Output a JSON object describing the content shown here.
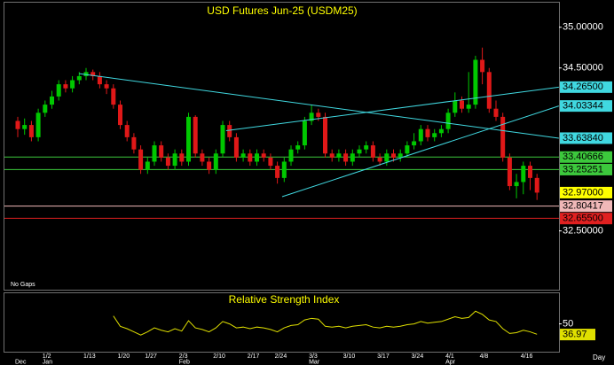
{
  "chart_data": {
    "type": "candlestick",
    "title": "USD  Futures  Jun-25  (USDM25)",
    "footnote": "No Gaps",
    "x_unit_label": "Day",
    "categories": [
      null,
      null,
      null,
      null,
      "1/2",
      null,
      null,
      null,
      null,
      null,
      "1/13",
      null,
      null,
      null,
      null,
      "1/20",
      null,
      null,
      null,
      "1/27",
      null,
      null,
      null,
      null,
      "2/3",
      null,
      null,
      null,
      null,
      "2/10",
      null,
      null,
      null,
      null,
      "2/17",
      null,
      null,
      null,
      "2/24",
      null,
      null,
      null,
      null,
      "3/3",
      null,
      null,
      null,
      null,
      "3/10",
      null,
      null,
      null,
      null,
      "3/17",
      null,
      null,
      null,
      null,
      "3/24",
      null,
      null,
      null,
      null,
      "4/1",
      null,
      null,
      null,
      null,
      "4/8",
      null,
      null,
      null,
      null,
      null,
      "4/16",
      null,
      null
    ],
    "months": [
      "Dec",
      null,
      null,
      null,
      "Jan",
      null,
      null,
      null,
      null,
      null,
      null,
      null,
      null,
      null,
      null,
      null,
      null,
      null,
      null,
      null,
      null,
      null,
      null,
      null,
      "Feb",
      null,
      null,
      null,
      null,
      null,
      null,
      null,
      null,
      null,
      null,
      null,
      null,
      null,
      null,
      null,
      null,
      null,
      null,
      "Mar",
      null,
      null,
      null,
      null,
      null,
      null,
      null,
      null,
      null,
      null,
      null,
      null,
      null,
      null,
      null,
      null,
      null,
      null,
      null,
      "Apr",
      null,
      null,
      null,
      null,
      null,
      null,
      null,
      null,
      null,
      null,
      null,
      null,
      null
    ],
    "open": [
      33.85,
      33.75,
      33.8,
      33.65,
      33.95,
      34.05,
      34.15,
      34.3,
      34.25,
      34.35,
      34.4,
      34.45,
      34.4,
      34.3,
      34.25,
      34.05,
      33.8,
      33.65,
      33.5,
      33.25,
      33.35,
      33.55,
      33.4,
      33.3,
      33.45,
      33.35,
      33.9,
      33.45,
      33.35,
      33.25,
      33.45,
      33.8,
      33.65,
      33.4,
      33.45,
      33.35,
      33.45,
      33.4,
      33.3,
      33.15,
      33.35,
      33.5,
      33.55,
      33.85,
      33.95,
      33.9,
      33.45,
      33.4,
      33.45,
      33.35,
      33.45,
      33.5,
      33.55,
      33.4,
      33.35,
      33.45,
      33.4,
      33.45,
      33.55,
      33.6,
      33.75,
      33.65,
      33.7,
      33.75,
      33.95,
      34.1,
      34.0,
      34.05,
      34.6,
      34.45,
      34.0,
      33.9,
      33.4,
      33.05,
      33.1,
      33.3,
      33.15
    ],
    "high": [
      33.9,
      33.88,
      33.85,
      34.0,
      34.1,
      34.22,
      34.35,
      34.35,
      34.4,
      34.45,
      34.5,
      34.48,
      34.45,
      34.35,
      34.3,
      34.1,
      33.85,
      33.7,
      33.55,
      33.4,
      33.6,
      33.6,
      33.45,
      33.5,
      33.5,
      33.95,
      33.92,
      33.5,
      33.4,
      33.5,
      33.85,
      33.85,
      33.7,
      33.5,
      33.5,
      33.5,
      33.5,
      33.45,
      33.35,
      33.4,
      33.55,
      33.6,
      33.9,
      34.05,
      34.0,
      33.95,
      33.5,
      33.5,
      33.5,
      33.5,
      33.55,
      33.6,
      33.6,
      33.45,
      33.5,
      33.5,
      33.5,
      33.6,
      33.7,
      33.8,
      33.8,
      33.75,
      33.8,
      34.0,
      34.2,
      34.15,
      34.45,
      34.65,
      34.75,
      34.5,
      34.1,
      33.95,
      33.45,
      33.2,
      33.35,
      33.35,
      33.2
    ],
    "low": [
      33.65,
      33.68,
      33.6,
      33.6,
      33.9,
      34.0,
      34.1,
      34.2,
      34.2,
      34.3,
      34.35,
      34.35,
      34.25,
      34.18,
      34.0,
      33.75,
      33.6,
      33.45,
      33.2,
      33.2,
      33.3,
      33.35,
      33.25,
      33.25,
      33.3,
      33.3,
      33.4,
      33.3,
      33.2,
      33.2,
      33.4,
      33.6,
      33.35,
      33.35,
      33.3,
      33.3,
      33.35,
      33.25,
      33.08,
      33.1,
      33.3,
      33.45,
      33.5,
      33.8,
      33.85,
      33.4,
      33.35,
      33.35,
      33.3,
      33.3,
      33.4,
      33.45,
      33.35,
      33.3,
      33.3,
      33.35,
      33.35,
      33.4,
      33.5,
      33.55,
      33.6,
      33.6,
      33.65,
      33.7,
      33.9,
      33.95,
      33.95,
      34.0,
      34.3,
      33.95,
      33.85,
      33.35,
      33.0,
      32.9,
      32.95,
      33.0,
      32.88
    ],
    "close": [
      33.75,
      33.8,
      33.65,
      33.95,
      34.05,
      34.15,
      34.3,
      34.25,
      34.35,
      34.4,
      34.45,
      34.4,
      34.3,
      34.25,
      34.05,
      33.8,
      33.65,
      33.5,
      33.25,
      33.35,
      33.55,
      33.4,
      33.3,
      33.45,
      33.35,
      33.9,
      33.45,
      33.35,
      33.25,
      33.45,
      33.8,
      33.65,
      33.4,
      33.45,
      33.35,
      33.45,
      33.4,
      33.3,
      33.15,
      33.35,
      33.5,
      33.55,
      33.85,
      33.95,
      33.9,
      33.45,
      33.4,
      33.45,
      33.35,
      33.45,
      33.5,
      33.55,
      33.4,
      33.35,
      33.45,
      33.4,
      33.45,
      33.55,
      33.6,
      33.75,
      33.65,
      33.7,
      33.75,
      33.95,
      34.1,
      34.0,
      34.05,
      34.6,
      34.45,
      34.0,
      33.9,
      33.4,
      33.05,
      33.1,
      33.3,
      33.15,
      32.97
    ],
    "up_color": "#00c800",
    "down_color": "#e01818",
    "ylim": [
      31.8,
      35.28
    ],
    "yticks": [
      {
        "value": 35,
        "label": "35.00000"
      },
      {
        "value": 34.5,
        "label": "34.50000"
      },
      {
        "value": 32.5,
        "label": "32.50000"
      }
    ],
    "trendlines": [
      {
        "start_index": 9,
        "start_value": 34.43,
        "end_index": 79.2,
        "end": {
          "value": 33.6384,
          "label": "33.63840"
        },
        "color": "#40d8e0"
      },
      {
        "start_index": 30.5,
        "start_value": 33.73,
        "end_index": 79.2,
        "end": {
          "value": 34.265,
          "label": "34.26500"
        },
        "color": "#40d8e0"
      },
      {
        "start_index": 38.7,
        "start_value": 32.92,
        "end_index": 79.2,
        "end": {
          "value": 34.03344,
          "label": "34.03344"
        },
        "color": "#40d8e0"
      }
    ],
    "price_levels": [
      {
        "value": 33.40666,
        "label": "33.40666",
        "color": "#3cc83c",
        "line": true
      },
      {
        "value": 33.25251,
        "label": "33.25251",
        "color": "#3cc83c",
        "line": true
      },
      {
        "value": 32.97,
        "label": "32.97000",
        "color": "#ffff00",
        "line": false
      },
      {
        "value": 32.80417,
        "label": "32.80417",
        "color": "#f0b8b8",
        "line": true
      },
      {
        "value": 32.655,
        "label": "32.65500",
        "color": "#e02020",
        "line": true
      }
    ],
    "rsi": {
      "title": "Relative Strength Index",
      "color": "#e0e000",
      "ylim": [
        15,
        83
      ],
      "yticks": [
        50
      ],
      "values": [
        null,
        null,
        null,
        null,
        null,
        null,
        null,
        null,
        null,
        null,
        null,
        null,
        null,
        null,
        60,
        47,
        44,
        40,
        36,
        40,
        45,
        42,
        40,
        44,
        41,
        54,
        45,
        43,
        40,
        45,
        53,
        50,
        45,
        46,
        44,
        46,
        45,
        43,
        40,
        45,
        48,
        49,
        55,
        57,
        56,
        47,
        46,
        47,
        45,
        47,
        48,
        49,
        46,
        45,
        47,
        46,
        47,
        49,
        50,
        53,
        51,
        52,
        53,
        56,
        59,
        57,
        58,
        66,
        62,
        55,
        53,
        44,
        38,
        39,
        42,
        40,
        36.97
      ]
    }
  }
}
